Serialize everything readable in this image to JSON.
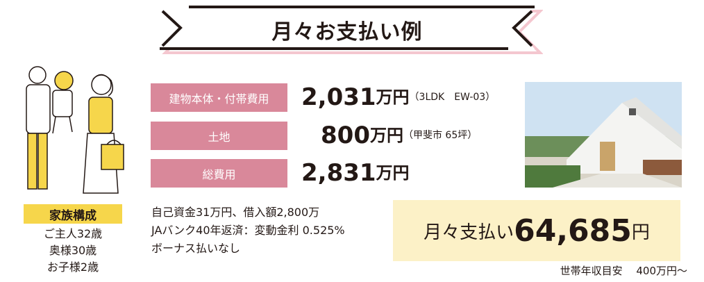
{
  "title": "月々お支払い例",
  "family": {
    "label": "家族構成",
    "members": [
      "ご主人32歳",
      "奥様30歳",
      "お子様2歳"
    ]
  },
  "costs": [
    {
      "label": "建物本体・付帯費用",
      "amount": "2,031",
      "unit": "万円",
      "note": "（3LDK　EW-03）"
    },
    {
      "label": "土地",
      "amount": "800",
      "unit": "万円",
      "note": "（甲斐市 65坪）"
    },
    {
      "label": "総費用",
      "amount": "2,831",
      "unit": "万円",
      "note": ""
    }
  ],
  "conditions": [
    "自己資金31万円、借入額2,800万",
    "JAバンク40年返済：変動金利 0.525%",
    "ボーナス払いなし"
  ],
  "monthly": {
    "label": "月々支払い",
    "value": "64,685",
    "unit": "円"
  },
  "income_note": "世帯年収目安　 400万円〜",
  "colors": {
    "pink": "#d9889a",
    "yellow": "#f6d64b",
    "cream": "#fcf1c7",
    "banner_shadow": "#f4c7cf"
  }
}
